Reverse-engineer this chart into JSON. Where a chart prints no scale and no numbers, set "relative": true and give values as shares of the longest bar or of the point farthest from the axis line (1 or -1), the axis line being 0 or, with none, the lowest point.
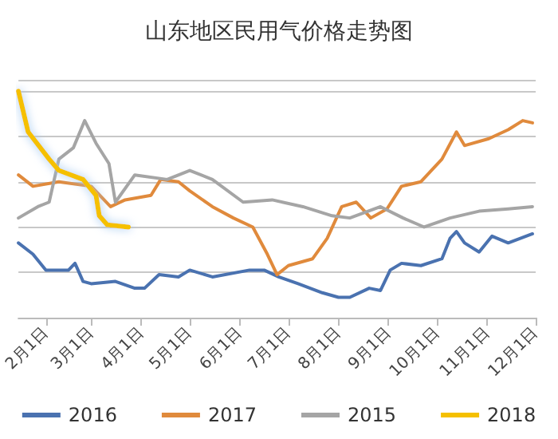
{
  "chart_data": {
    "type": "line",
    "title": "山东地区民用气价格走势图",
    "relative": true,
    "grid": "y",
    "legend": "bottom",
    "marker": "none",
    "line_style": "solid",
    "xlim": [
      "--01-15",
      "--12-01"
    ],
    "xticks": [
      {
        "value": "--02-01",
        "label": "2月1日"
      },
      {
        "value": "--03-01",
        "label": "3月1日"
      },
      {
        "value": "--04-01",
        "label": "4月1日"
      },
      {
        "value": "--05-01",
        "label": "5月1日"
      },
      {
        "value": "--06-01",
        "label": "6月1日"
      },
      {
        "value": "--07-01",
        "label": "7月1日"
      },
      {
        "value": "--08-01",
        "label": "8月1日"
      },
      {
        "value": "--09-01",
        "label": "9月1日"
      },
      {
        "value": "--10-01",
        "label": "10月1日"
      },
      {
        "value": "--11-01",
        "label": "11月1日"
      },
      {
        "value": "--12-01",
        "label": "12月1日"
      }
    ],
    "series": [
      {
        "name": "2016",
        "color": "#4a72b0",
        "x": [
          "--01-15",
          "--01-24",
          "--02-01",
          "--02-15",
          "--02-19",
          "--02-24",
          "--03-01",
          "--03-16",
          "--03-28",
          "--04-03",
          "--04-12",
          "--04-24",
          "--05-01",
          "--05-15",
          "--06-07",
          "--06-16",
          "--06-25",
          "--07-07",
          "--07-22",
          "--08-01",
          "--08-08",
          "--08-20",
          "--08-27",
          "--09-02",
          "--09-09",
          "--09-21",
          "--10-04",
          "--10-09",
          "--10-13",
          "--10-18",
          "--10-27",
          "--11-04",
          "--11-14",
          "--11-29"
        ],
        "values": [
          0.33,
          0.28,
          0.21,
          0.21,
          0.24,
          0.16,
          0.15,
          0.16,
          0.13,
          0.13,
          0.19,
          0.18,
          0.21,
          0.18,
          0.21,
          0.21,
          0.18,
          0.15,
          0.11,
          0.09,
          0.09,
          0.13,
          0.12,
          0.21,
          0.24,
          0.23,
          0.26,
          0.35,
          0.38,
          0.33,
          0.29,
          0.36,
          0.33,
          0.37
        ]
      },
      {
        "name": "2017",
        "color": "#e08a3c",
        "x": [
          "--01-15",
          "--01-24",
          "--02-09",
          "--03-01",
          "--03-13",
          "--03-22",
          "--04-07",
          "--04-13",
          "--04-24",
          "--05-01",
          "--05-15",
          "--05-28",
          "--06-09",
          "--06-18",
          "--06-24",
          "--07-01",
          "--07-16",
          "--07-25",
          "--08-03",
          "--08-12",
          "--08-21",
          "--08-31",
          "--09-09",
          "--09-21",
          "--10-04",
          "--10-13",
          "--10-18",
          "--11-02",
          "--11-14",
          "--11-23",
          "--11-29"
        ],
        "values": [
          0.63,
          0.58,
          0.6,
          0.58,
          0.49,
          0.52,
          0.54,
          0.61,
          0.6,
          0.56,
          0.49,
          0.44,
          0.4,
          0.28,
          0.19,
          0.23,
          0.26,
          0.35,
          0.49,
          0.51,
          0.44,
          0.48,
          0.58,
          0.6,
          0.7,
          0.82,
          0.76,
          0.79,
          0.83,
          0.87,
          0.86
        ]
      },
      {
        "name": "2015",
        "color": "#a5a5a5",
        "x": [
          "--01-15",
          "--01-27",
          "--02-03",
          "--02-09",
          "--02-18",
          "--02-25",
          "--03-04",
          "--03-12",
          "--03-16",
          "--03-28",
          "--04-17",
          "--05-01",
          "--05-15",
          "--06-03",
          "--06-21",
          "--07-10",
          "--07-28",
          "--08-08",
          "--08-27",
          "--09-10",
          "--09-23",
          "--10-09",
          "--10-27",
          "--11-14",
          "--11-29"
        ],
        "values": [
          0.44,
          0.49,
          0.51,
          0.7,
          0.75,
          0.87,
          0.77,
          0.68,
          0.51,
          0.63,
          0.61,
          0.65,
          0.61,
          0.51,
          0.52,
          0.49,
          0.45,
          0.44,
          0.49,
          0.44,
          0.4,
          0.44,
          0.47,
          0.48,
          0.49
        ]
      },
      {
        "name": "2018",
        "color": "#f5c000",
        "x": [
          "--01-15",
          "--01-21",
          "--02-03",
          "--02-09",
          "--02-24",
          "--03-04",
          "--03-06",
          "--03-11",
          "--03-24"
        ],
        "values": [
          1,
          0.82,
          0.7,
          0.65,
          0.61,
          0.54,
          0.45,
          0.41,
          0.4
        ]
      }
    ]
  }
}
